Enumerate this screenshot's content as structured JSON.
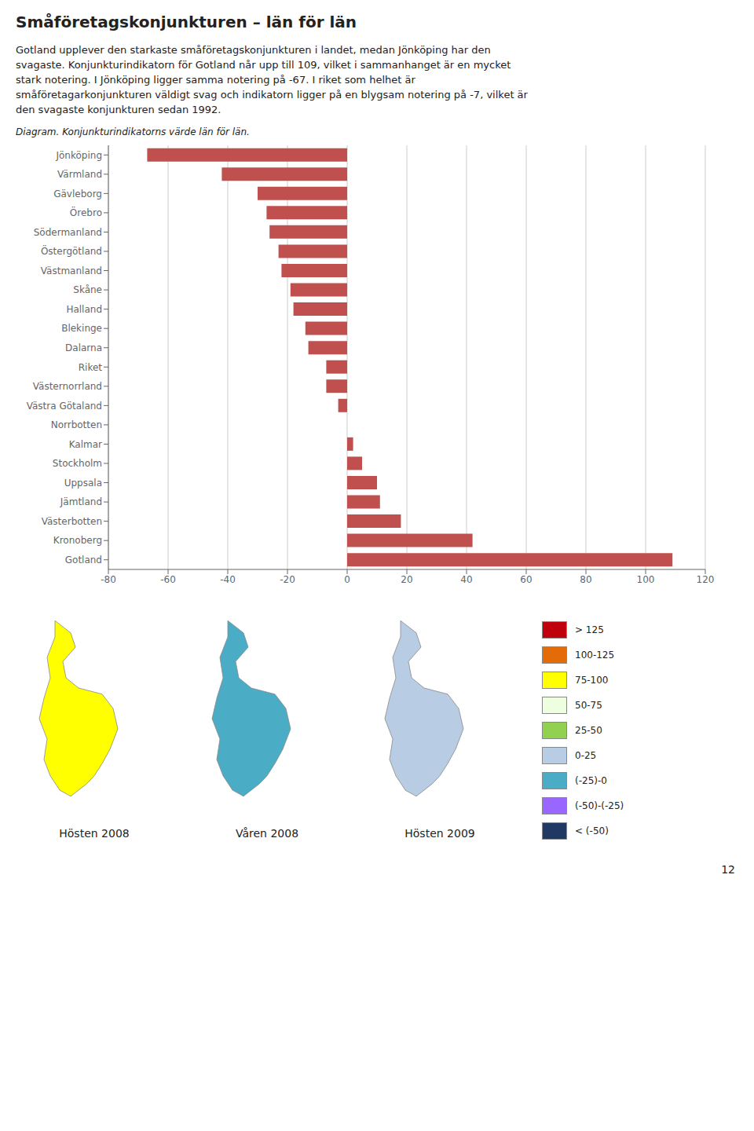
{
  "chart_data": [
    {
      "type": "bar",
      "title": "Småföretagskonjunkturen – län för län",
      "annotations": [
        "Gotland upplever den starkaste småföretagskonjunkturen i landet, medan Jönköping har den",
        "svagaste. Konjunkturindikatorn för Gotland når upp till 109, vilket i sammanhanget är en mycket",
        "stark notering. I Jönköping ligger samma notering på -67. I riket som helhet är",
        "småföretagarkonjunkturen väldigt svag och indikatorn ligger på en blygsam notering på -7, vilket är",
        "den svagaste konjunkturen sedan 1992.",
        "Diagram. Konjunkturindikatorns värde län för län."
      ],
      "orientation": "horizontal",
      "categories": [
        "Gotland",
        "Kronoberg",
        "Västerbotten",
        "Jämtland",
        "Uppsala",
        "Stockholm",
        "Kalmar",
        "Norrbotten",
        "Västra Götaland",
        "Västernorrland",
        "Riket",
        "Dalarna",
        "Blekinge",
        "Halland",
        "Skåne",
        "Västmanland",
        "Östergötland",
        "Södermanland",
        "Örebro",
        "Gävleborg",
        "Värmland",
        "Jönköping"
      ],
      "values": [
        109,
        42,
        18,
        11,
        10,
        5,
        2,
        0,
        -3,
        -7,
        -7,
        -13,
        -14,
        -18,
        -19,
        -22,
        -23,
        -26,
        -27,
        -30,
        -42,
        -67
      ],
      "color": "#c0504d",
      "xlim": [
        -80,
        120
      ],
      "xticks": [
        -80,
        -60,
        -40,
        -20,
        0,
        20,
        40,
        60,
        80,
        100,
        120
      ],
      "grid": "x"
    },
    {
      "type": "map",
      "categories": [
        "Hösten 2008",
        "Våren 2008",
        "Hösten 2009"
      ],
      "colors": [
        "#ffff00",
        "#4bacc6",
        "#b8cce4"
      ],
      "series": [
        {
          "name": "> 125",
          "color": "#c0000a"
        },
        {
          "name": "100-125",
          "color": "#e36c09"
        },
        {
          "name": "75-100",
          "color": "#ffff00"
        },
        {
          "name": "50-75",
          "color": "#eeffe0"
        },
        {
          "name": "25-50",
          "color": "#92d050"
        },
        {
          "name": "0-25",
          "color": "#b8cce4"
        },
        {
          "name": "(-25)-0",
          "color": "#4bacc6"
        },
        {
          "name": "(-50)-(-25)",
          "color": "#9966ff"
        },
        {
          "name": "< (-50)",
          "color": "#1f3864"
        }
      ],
      "annotations": [
        "12"
      ]
    }
  ]
}
